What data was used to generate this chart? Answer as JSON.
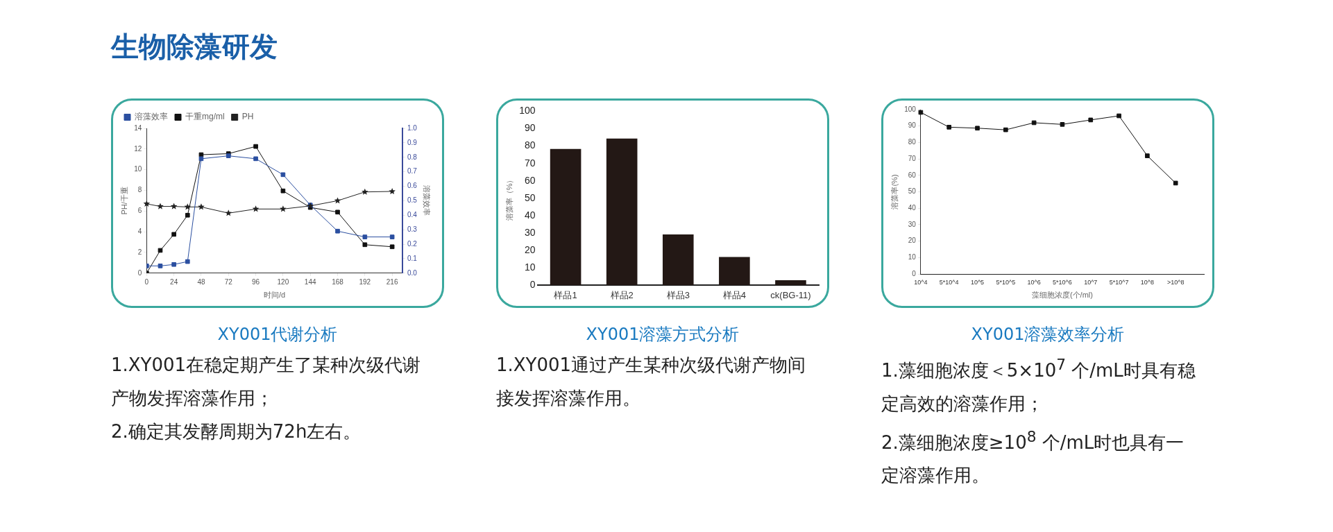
{
  "chart_data": [
    {
      "type": "other",
      "title": "生物除藻研发"
    },
    {
      "type": "line",
      "title": "XY001代谢分析",
      "xlabel": "时间/d",
      "ylabel": "PH/干重",
      "y2label": "溶藻效率",
      "x": [
        0,
        12,
        24,
        36,
        48,
        72,
        96,
        120,
        144,
        168,
        192,
        216
      ],
      "xlim": [
        0,
        225
      ],
      "xticks": [
        0,
        24,
        48,
        72,
        96,
        120,
        144,
        168,
        192,
        216
      ],
      "ylim": [
        0,
        14
      ],
      "yticks": [
        0,
        2,
        4,
        6,
        8,
        10,
        12,
        14
      ],
      "y2lim": [
        0,
        1
      ],
      "y2ticks": [
        {
          "value": 0,
          "label": "0.0"
        },
        0.1,
        0.2,
        0.3,
        0.4,
        0.5,
        0.6,
        0.7,
        0.8,
        0.9,
        {
          "value": 1,
          "label": "1.0"
        }
      ],
      "grid": false,
      "legend": "top left",
      "series": [
        {
          "name": "PH",
          "color": "#222222",
          "marker": "star",
          "values": [
            6.7,
            6.45,
            6.45,
            6.4,
            6.4,
            5.8,
            6.2,
            6.2,
            6.5,
            7.0,
            7.85,
            7.9
          ]
        },
        {
          "name": "干重mg/ml",
          "color": "#111111",
          "marker": "square",
          "values": [
            0,
            2.2,
            3.75,
            5.6,
            11.45,
            11.55,
            12.25,
            7.95,
            6.35,
            5.9,
            2.75,
            2.55
          ]
        },
        {
          "name": "溶藻效率",
          "color": "#2b4fa0",
          "marker": "square",
          "axis": "y2",
          "values": [
            0.05,
            0.05,
            0.06,
            0.08,
            0.79,
            0.81,
            0.79,
            0.68,
            0.47,
            0.29,
            0.25,
            0.25
          ]
        }
      ],
      "annotations": [
        "1.XY001在稳定期产生了某种次级代谢产物发挥溶藻作用；",
        "2.确定其发酵周期为72h左右。"
      ]
    },
    {
      "type": "bar",
      "title": "XY001溶藻方式分析",
      "ylabel": "溶藻率（%）",
      "categories": [
        "样品1",
        "样品2",
        "样品3",
        "样品4",
        "ck(BG-11)"
      ],
      "values": [
        78.3,
        84.3,
        29.2,
        16.3,
        2.9
      ],
      "color": "#231815",
      "ylim": [
        0,
        100
      ],
      "yticks": [
        0,
        10,
        20,
        30,
        40,
        50,
        60,
        70,
        80,
        90,
        100
      ],
      "grid": false,
      "legend": false,
      "annotations": [
        "1.XY001通过产生某种次级代谢产物间接发挥溶藻作用。"
      ]
    },
    {
      "type": "line",
      "title": "XY001溶藻效率分析",
      "xlabel": "藻细胞浓度(个/ml)",
      "ylabel": "溶藻率(%)",
      "categories": [
        "10^4",
        "5*10^4",
        "10^5",
        "5*10^5",
        "10^6",
        "5*10^6",
        "10^7",
        "5*10^7",
        "10^8",
        ">10^8",
        null
      ],
      "grid": false,
      "legend": false,
      "marker": "square",
      "ylim": [
        0,
        100
      ],
      "yticks": [
        0,
        10,
        20,
        30,
        40,
        50,
        60,
        70,
        80,
        90,
        100
      ],
      "series": [
        {
          "color": "#111111",
          "values": [
            98.3,
            89.3,
            88.7,
            87.7,
            92,
            91,
            93.7,
            96.2,
            71.9,
            55.3,
            null
          ]
        }
      ],
      "annotations": [
        "1.藻细胞浓度＜5×10$^{7}$ 个/mL时具有稳定高效的溶藻作用；",
        "2.藻细胞浓度≥10$^{8}$ 个/mL时也具有一定溶藻作用。"
      ]
    }
  ]
}
